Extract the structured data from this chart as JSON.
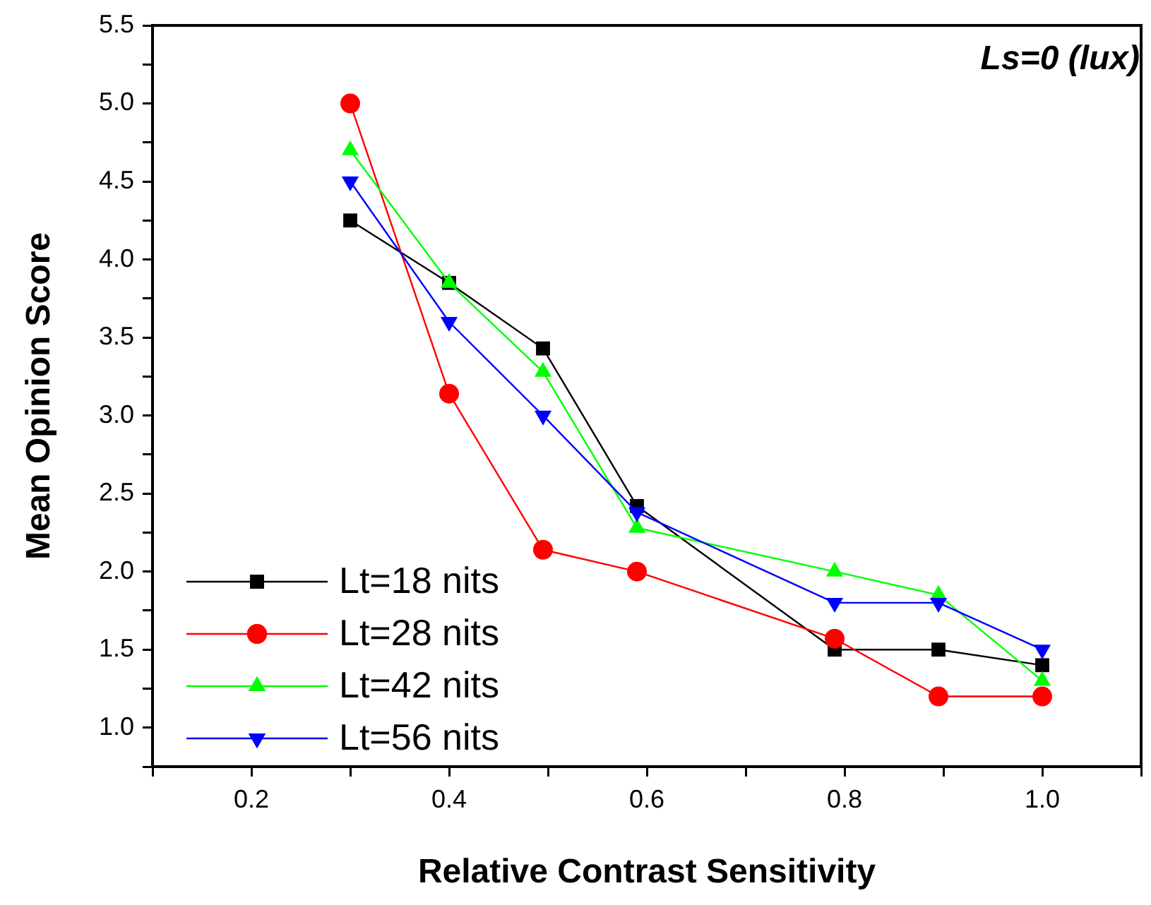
{
  "chart_data": {
    "type": "line",
    "xlabel": "Relative Contrast Sensitivity",
    "ylabel": "Mean Opinion Score",
    "annotations": [
      "Ls=0 (lux)"
    ],
    "xlim": [
      0.1,
      1.1
    ],
    "xticks": [
      {
        "value": 0.1,
        "label": null
      },
      {
        "value": 0.2,
        "label": "0.2"
      },
      {
        "value": 0.3,
        "label": null
      },
      {
        "value": 0.4,
        "label": "0.4"
      },
      {
        "value": 0.5,
        "label": null
      },
      {
        "value": 0.6,
        "label": "0.6"
      },
      {
        "value": 0.7,
        "label": null
      },
      {
        "value": 0.8,
        "label": "0.8"
      },
      {
        "value": 0.9,
        "label": null
      },
      {
        "value": 1.0,
        "label": "1.0"
      },
      {
        "value": 1.1,
        "label": null
      }
    ],
    "ylim": [
      0.75,
      5.5
    ],
    "yticks": [
      {
        "value": 0.75,
        "label": null
      },
      {
        "value": 1.0,
        "label": "1.0"
      },
      {
        "value": 1.25,
        "label": null
      },
      {
        "value": 1.5,
        "label": "1.5"
      },
      {
        "value": 1.75,
        "label": null
      },
      {
        "value": 2.0,
        "label": "2.0"
      },
      {
        "value": 2.25,
        "label": null
      },
      {
        "value": 2.5,
        "label": "2.5"
      },
      {
        "value": 2.75,
        "label": null
      },
      {
        "value": 3.0,
        "label": "3.0"
      },
      {
        "value": 3.25,
        "label": null
      },
      {
        "value": 3.5,
        "label": "3.5"
      },
      {
        "value": 3.75,
        "label": null
      },
      {
        "value": 4.0,
        "label": "4.0"
      },
      {
        "value": 4.25,
        "label": null
      },
      {
        "value": 4.5,
        "label": "4.5"
      },
      {
        "value": 4.75,
        "label": null
      },
      {
        "value": 5.0,
        "label": "5.0"
      },
      {
        "value": 5.25,
        "label": null
      },
      {
        "value": 5.5,
        "label": "5.5"
      }
    ],
    "x": [
      0.3,
      0.4,
      0.495,
      0.59,
      0.79,
      0.895,
      1.0
    ],
    "series": [
      {
        "name": "Lt=18 nits",
        "color": "#000000",
        "marker": "square",
        "values": [
          4.25,
          3.85,
          3.43,
          2.42,
          1.5,
          1.5,
          1.4
        ]
      },
      {
        "name": "Lt=28 nits",
        "color": "#ff0000",
        "marker": "circle",
        "values": [
          5.0,
          3.14,
          2.14,
          2.0,
          1.57,
          1.2,
          1.2
        ]
      },
      {
        "name": "Lt=42 nits",
        "color": "#00ff00",
        "marker": "triangle",
        "values": [
          4.7,
          3.85,
          3.28,
          2.28,
          2.0,
          1.85,
          1.3
        ]
      },
      {
        "name": "Lt=56 nits",
        "color": "#0000ff",
        "marker": "triangle-down",
        "values": [
          4.5,
          3.6,
          3.0,
          2.38,
          1.8,
          1.8,
          1.5
        ]
      }
    ],
    "grid": false,
    "legend": "bottom left",
    "line_style": "solid"
  }
}
